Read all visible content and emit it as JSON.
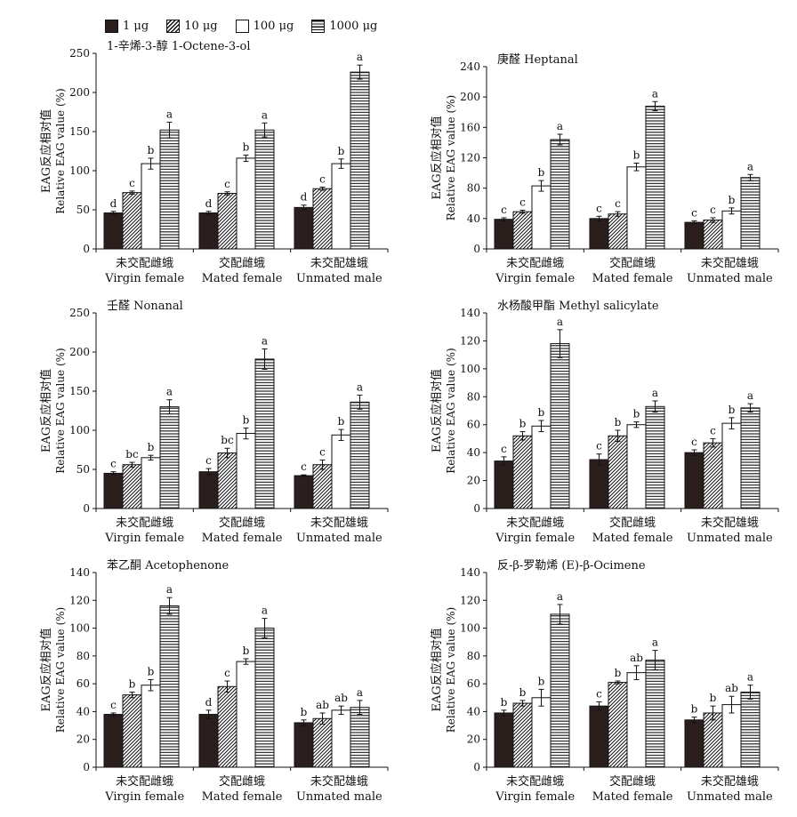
{
  "legend": {
    "items": [
      {
        "label": "1 μg"
      },
      {
        "label": "10 μg"
      },
      {
        "label": "100 μg"
      },
      {
        "label": "1000 μg"
      }
    ]
  },
  "ylabel_cn": "EAG反应相对值",
  "ylabel_en": "Relative EAG value (%)",
  "groups": [
    {
      "cn": "未交配雌蛾",
      "en": "Virgin female"
    },
    {
      "cn": "交配雌蛾",
      "en": "Mated female"
    },
    {
      "cn": "未交配雄蛾",
      "en": "Unmated male"
    }
  ],
  "chart_data": [
    {
      "type": "bar",
      "title": "1-辛烯-3-醇 1-Octene-3-ol",
      "ylim": [
        0,
        250
      ],
      "yticks": [
        0,
        50,
        100,
        150,
        200,
        250
      ],
      "categories": [
        "未交配雌蛾 Virgin female",
        "交配雌蛾 Mated female",
        "未交配雄蛾 Unmated male"
      ],
      "series": [
        {
          "name": "1 μg",
          "values": [
            46,
            46,
            53
          ],
          "errors": [
            2,
            2,
            3
          ],
          "letters": [
            "d",
            "d",
            "d"
          ]
        },
        {
          "name": "10 μg",
          "values": [
            72,
            71,
            77
          ],
          "errors": [
            2,
            2,
            2
          ],
          "letters": [
            "c",
            "c",
            "c"
          ]
        },
        {
          "name": "100 μg",
          "values": [
            109,
            116,
            109
          ],
          "errors": [
            7,
            4,
            6
          ],
          "letters": [
            "b",
            "b",
            "b"
          ]
        },
        {
          "name": "1000 μg",
          "values": [
            152,
            152,
            226
          ],
          "errors": [
            10,
            9,
            9
          ],
          "letters": [
            "a",
            "a",
            "a"
          ]
        }
      ]
    },
    {
      "type": "bar",
      "title": "庚醛 Heptanal",
      "ylim": [
        0,
        240
      ],
      "yticks": [
        0,
        40,
        80,
        120,
        160,
        200,
        240
      ],
      "categories": [
        "未交配雌蛾 Virgin female",
        "交配雌蛾 Mated female",
        "未交配雄蛾 Unmated male"
      ],
      "series": [
        {
          "name": "1 μg",
          "values": [
            39,
            40,
            35
          ],
          "errors": [
            2,
            3,
            2
          ],
          "letters": [
            "c",
            "c",
            "c"
          ]
        },
        {
          "name": "10 μg",
          "values": [
            49,
            46,
            38
          ],
          "errors": [
            2,
            3,
            3
          ],
          "letters": [
            "c",
            "c",
            "c"
          ]
        },
        {
          "name": "100 μg",
          "values": [
            83,
            108,
            50
          ],
          "errors": [
            7,
            5,
            4
          ],
          "letters": [
            "b",
            "b",
            "b"
          ]
        },
        {
          "name": "1000 μg",
          "values": [
            144,
            188,
            94
          ],
          "errors": [
            7,
            6,
            4
          ],
          "letters": [
            "a",
            "a",
            "a"
          ]
        }
      ]
    },
    {
      "type": "bar",
      "title": "壬醛 Nonanal",
      "ylim": [
        0,
        250
      ],
      "yticks": [
        0,
        50,
        100,
        150,
        200,
        250
      ],
      "categories": [
        "未交配雌蛾 Virgin female",
        "交配雌蛾 Mated female",
        "未交配雄蛾 Unmated male"
      ],
      "series": [
        {
          "name": "1 μg",
          "values": [
            45,
            47,
            42
          ],
          "errors": [
            2,
            4,
            1
          ],
          "letters": [
            "c",
            "c",
            "c"
          ]
        },
        {
          "name": "10 μg",
          "values": [
            56,
            71,
            56
          ],
          "errors": [
            3,
            6,
            6
          ],
          "letters": [
            "bc",
            "bc",
            "c"
          ]
        },
        {
          "name": "100 μg",
          "values": [
            65,
            96,
            94
          ],
          "errors": [
            3,
            7,
            7
          ],
          "letters": [
            "b",
            "b",
            "b"
          ]
        },
        {
          "name": "1000 μg",
          "values": [
            130,
            191,
            136
          ],
          "errors": [
            9,
            13,
            9
          ],
          "letters": [
            "a",
            "a",
            "a"
          ]
        }
      ]
    },
    {
      "type": "bar",
      "title": "水杨酸甲酯 Methyl salicylate",
      "ylim": [
        0,
        140
      ],
      "yticks": [
        0,
        20,
        40,
        60,
        80,
        100,
        120,
        140
      ],
      "categories": [
        "未交配雌蛾 Virgin female",
        "交配雌蛾 Mated female",
        "未交配雄蛾 Unmated male"
      ],
      "series": [
        {
          "name": "1 μg",
          "values": [
            34,
            35,
            40
          ],
          "errors": [
            3,
            4,
            2
          ],
          "letters": [
            "c",
            "c",
            "c"
          ]
        },
        {
          "name": "10 μg",
          "values": [
            52,
            52,
            47
          ],
          "errors": [
            3,
            4,
            3
          ],
          "letters": [
            "b",
            "b",
            "c"
          ]
        },
        {
          "name": "100 μg",
          "values": [
            59,
            60,
            61
          ],
          "errors": [
            4,
            2,
            4
          ],
          "letters": [
            "b",
            "b",
            "b"
          ]
        },
        {
          "name": "1000 μg",
          "values": [
            118,
            73,
            72
          ],
          "errors": [
            10,
            4,
            3
          ],
          "letters": [
            "a",
            "a",
            "a"
          ]
        }
      ]
    },
    {
      "type": "bar",
      "title": "苯乙酮 Acetophenone",
      "ylim": [
        0,
        140
      ],
      "yticks": [
        0,
        20,
        40,
        60,
        80,
        100,
        120,
        140
      ],
      "categories": [
        "未交配雌蛾 Virgin female",
        "交配雌蛾 Mated female",
        "未交配雄蛾 Unmated male"
      ],
      "series": [
        {
          "name": "1 μg",
          "values": [
            38,
            38,
            32
          ],
          "errors": [
            1,
            3,
            2
          ],
          "letters": [
            "c",
            "d",
            "b"
          ]
        },
        {
          "name": "10 μg",
          "values": [
            52,
            58,
            35
          ],
          "errors": [
            2,
            4,
            4
          ],
          "letters": [
            "b",
            "c",
            "ab"
          ]
        },
        {
          "name": "100 μg",
          "values": [
            59,
            76,
            41
          ],
          "errors": [
            4,
            2,
            3
          ],
          "letters": [
            "b",
            "b",
            "ab"
          ]
        },
        {
          "name": "1000 μg",
          "values": [
            116,
            100,
            43
          ],
          "errors": [
            6,
            7,
            5
          ],
          "letters": [
            "a",
            "a",
            "a"
          ]
        }
      ]
    },
    {
      "type": "bar",
      "title": "反-β-罗勒烯 (E)-β-Ocimene",
      "ylim": [
        0,
        140
      ],
      "yticks": [
        0,
        20,
        40,
        60,
        80,
        100,
        120,
        140
      ],
      "categories": [
        "未交配雌蛾 Virgin female",
        "交配雌蛾 Mated female",
        "未交配雄蛾 Unmated male"
      ],
      "series": [
        {
          "name": "1 μg",
          "values": [
            39,
            44,
            34
          ],
          "errors": [
            2,
            3,
            2
          ],
          "letters": [
            "b",
            "c",
            "b"
          ]
        },
        {
          "name": "10 μg",
          "values": [
            46,
            61,
            39
          ],
          "errors": [
            2,
            1,
            5
          ],
          "letters": [
            "b",
            "b",
            "b"
          ]
        },
        {
          "name": "100 μg",
          "values": [
            50,
            68,
            45
          ],
          "errors": [
            6,
            5,
            6
          ],
          "letters": [
            "b",
            "ab",
            "ab"
          ]
        },
        {
          "name": "1000 μg",
          "values": [
            110,
            77,
            54
          ],
          "errors": [
            7,
            7,
            5
          ],
          "letters": [
            "a",
            "a",
            "a"
          ]
        }
      ]
    }
  ]
}
